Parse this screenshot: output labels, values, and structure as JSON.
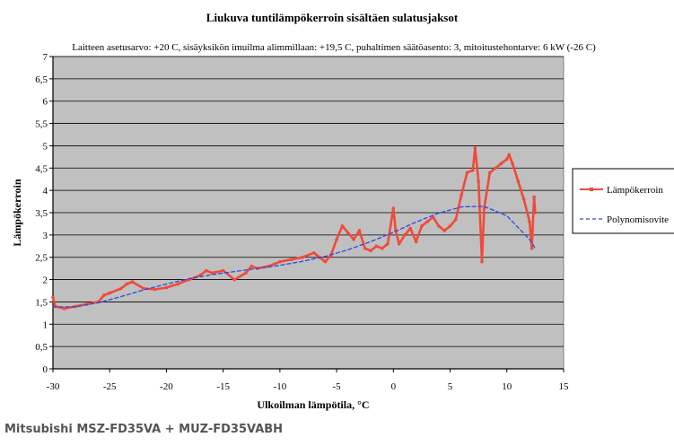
{
  "caption": "Mitsubishi MSZ-FD35VA + MUZ-FD35VABH",
  "colors": {
    "plot_area": "#c0c0c0",
    "grid": "#000000",
    "measured": "#f04a3a",
    "trend": "#2a4ae0",
    "caption": "#555555"
  },
  "chart_data": {
    "type": "line",
    "title": "Liukuva tuntilämpökerroin sisältäen sulatusjaksot",
    "subtitle": "Laitteen asetusarvo: +20  C, sisäyksikön imuilma alimmillaan: +19,5  C, puhaltimen säätöasento: 3, mitoitustehontarve: 6 kW (-26  C)",
    "xlabel": "Ulkoilman lämpötila, °C",
    "ylabel": "Lämpökerroin",
    "xlim": [
      -30,
      15
    ],
    "ylim": [
      0,
      7
    ],
    "x_ticks": [
      "-30",
      "-25",
      "-20",
      "-15",
      "-10",
      "-5",
      "0",
      "5",
      "10",
      "15"
    ],
    "y_ticks": [
      "0",
      "0,5",
      "1",
      "1,5",
      "2",
      "2,5",
      "3",
      "3,5",
      "4",
      "4,5",
      "5",
      "5,5",
      "6",
      "6,5",
      "7"
    ],
    "grid": true,
    "legend_position": "right",
    "series": [
      {
        "name": "Lämpökerroin",
        "style": "solid-with-markers",
        "points": [
          [
            -30,
            1.6
          ],
          [
            -29.8,
            1.4
          ],
          [
            -29,
            1.35
          ],
          [
            -28,
            1.4
          ],
          [
            -27,
            1.45
          ],
          [
            -26,
            1.5
          ],
          [
            -25.5,
            1.65
          ],
          [
            -25,
            1.7
          ],
          [
            -24,
            1.8
          ],
          [
            -23.5,
            1.9
          ],
          [
            -23,
            1.95
          ],
          [
            -22,
            1.8
          ],
          [
            -21,
            1.78
          ],
          [
            -20,
            1.82
          ],
          [
            -19,
            1.9
          ],
          [
            -18,
            2.0
          ],
          [
            -17,
            2.1
          ],
          [
            -16.5,
            2.2
          ],
          [
            -16,
            2.15
          ],
          [
            -15,
            2.2
          ],
          [
            -14,
            2.0
          ],
          [
            -13,
            2.15
          ],
          [
            -12.5,
            2.3
          ],
          [
            -12,
            2.25
          ],
          [
            -11,
            2.3
          ],
          [
            -10,
            2.4
          ],
          [
            -9,
            2.45
          ],
          [
            -8,
            2.5
          ],
          [
            -7,
            2.6
          ],
          [
            -6.5,
            2.5
          ],
          [
            -6,
            2.4
          ],
          [
            -5.5,
            2.55
          ],
          [
            -5,
            2.9
          ],
          [
            -4.5,
            3.2
          ],
          [
            -4,
            3.05
          ],
          [
            -3.5,
            2.9
          ],
          [
            -3,
            3.1
          ],
          [
            -2.5,
            2.7
          ],
          [
            -2,
            2.65
          ],
          [
            -1.5,
            2.75
          ],
          [
            -1,
            2.7
          ],
          [
            -0.5,
            2.8
          ],
          [
            0,
            3.6
          ],
          [
            0.2,
            3.1
          ],
          [
            0.5,
            2.8
          ],
          [
            1,
            3.0
          ],
          [
            1.5,
            3.15
          ],
          [
            2,
            2.85
          ],
          [
            2.5,
            3.2
          ],
          [
            3,
            3.3
          ],
          [
            3.5,
            3.4
          ],
          [
            4,
            3.2
          ],
          [
            4.5,
            3.1
          ],
          [
            5,
            3.2
          ],
          [
            5.5,
            3.35
          ],
          [
            6,
            3.9
          ],
          [
            6.5,
            4.4
          ],
          [
            7,
            4.45
          ],
          [
            7.2,
            4.95
          ],
          [
            7.5,
            4.2
          ],
          [
            7.8,
            2.4
          ],
          [
            8,
            3.6
          ],
          [
            8.5,
            4.4
          ],
          [
            9,
            4.5
          ],
          [
            9.5,
            4.6
          ],
          [
            10,
            4.7
          ],
          [
            10.2,
            4.8
          ],
          [
            10.5,
            4.6
          ],
          [
            11,
            4.2
          ],
          [
            11.5,
            3.8
          ],
          [
            12,
            3.3
          ],
          [
            12.2,
            2.7
          ],
          [
            12.4,
            3.85
          ],
          [
            12.5,
            3.5
          ]
        ]
      },
      {
        "name": "Polynomisovite",
        "style": "dashed",
        "points": [
          [
            -30,
            1.39
          ],
          [
            -28,
            1.39
          ],
          [
            -26,
            1.48
          ],
          [
            -24,
            1.62
          ],
          [
            -22,
            1.77
          ],
          [
            -20,
            1.9
          ],
          [
            -18,
            2.02
          ],
          [
            -16,
            2.11
          ],
          [
            -14,
            2.18
          ],
          [
            -12,
            2.25
          ],
          [
            -10,
            2.32
          ],
          [
            -8,
            2.41
          ],
          [
            -6,
            2.52
          ],
          [
            -4,
            2.67
          ],
          [
            -2,
            2.85
          ],
          [
            0,
            3.06
          ],
          [
            2,
            3.29
          ],
          [
            4,
            3.49
          ],
          [
            6,
            3.63
          ],
          [
            8,
            3.64
          ],
          [
            10,
            3.43
          ],
          [
            12,
            2.9
          ],
          [
            12.5,
            2.7
          ]
        ]
      }
    ]
  }
}
